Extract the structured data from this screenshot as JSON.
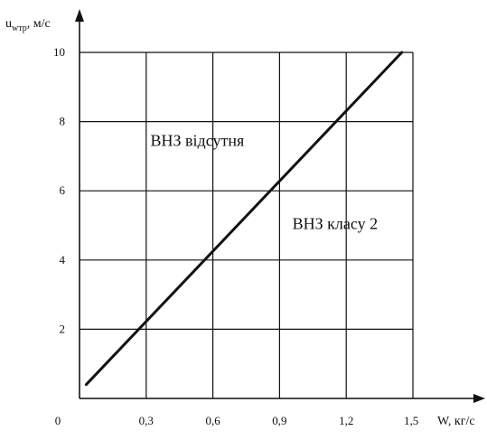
{
  "chart_data": {
    "type": "line",
    "title": "",
    "xlabel": "W, кг/с",
    "ylabel": "u",
    "ylabel_sub": "wтр",
    "ylabel_unit": ", м/с",
    "xlim": [
      0,
      1.5
    ],
    "ylim": [
      0,
      10
    ],
    "x_ticks": [
      0.3,
      0.6,
      0.9,
      1.2,
      1.5
    ],
    "x_tick_labels": [
      "0,3",
      "0,6",
      "0,9",
      "1,2",
      "1,5"
    ],
    "y_ticks": [
      2,
      4,
      6,
      8,
      10
    ],
    "y_tick_labels": [
      "2",
      "4",
      "6",
      "8",
      "10"
    ],
    "origin_label": "0",
    "grid": true,
    "series": [
      {
        "x": [
          0.03,
          1.45
        ],
        "y": [
          0.4,
          10
        ]
      }
    ],
    "annotations": [
      {
        "text": "ВНЗ відсутня",
        "x": 0.53,
        "y": 7.3
      },
      {
        "text": "ВНЗ класу 2",
        "x": 1.15,
        "y": 4.9
      }
    ]
  }
}
